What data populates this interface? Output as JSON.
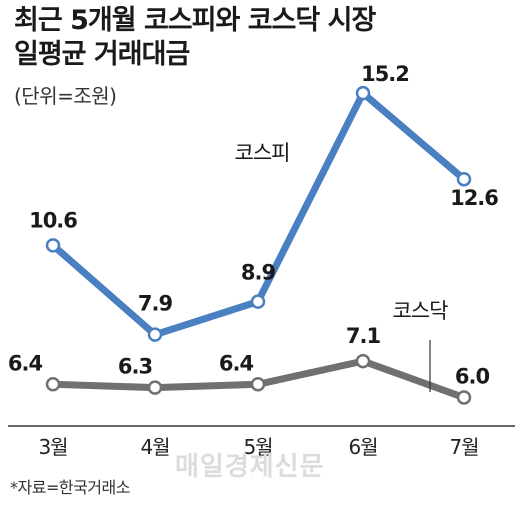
{
  "header": {
    "title_line1": "최근 5개월 코스피와 코스닥 시장",
    "title_line2": "일평균 거래대금",
    "unit": "(단위=조원)"
  },
  "footer": {
    "source": "*자료=한국거래소",
    "watermark": "매일경제신문"
  },
  "chart_data": {
    "type": "line",
    "categories": [
      "3월",
      "4월",
      "5월",
      "6월",
      "7월"
    ],
    "series": [
      {
        "name": "코스피",
        "values": [
          10.6,
          7.9,
          8.9,
          15.2,
          12.6
        ],
        "color": "#4a7fc1"
      },
      {
        "name": "코스닥",
        "values": [
          6.4,
          6.3,
          6.4,
          7.1,
          6.0
        ],
        "color": "#707070"
      }
    ],
    "title": "최근 5개월 코스피와 코스닥 시장 일평균 거래대금",
    "ylabel": "",
    "xlabel": "",
    "grid": false,
    "legend": "inline labels"
  }
}
